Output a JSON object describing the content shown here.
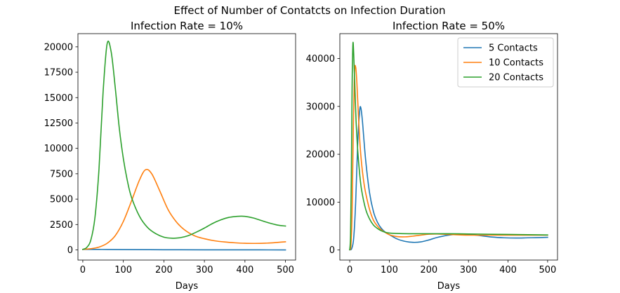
{
  "figure": {
    "suptitle": "Effect of Number of Contatcts on Infection Duration"
  },
  "chart_data": [
    {
      "type": "line",
      "title": "Infection Rate = 10%",
      "xlabel": "Days",
      "ylabel": "",
      "xlim": [
        -12,
        525
      ],
      "ylim": [
        -1000,
        21300
      ],
      "xticks": [
        0,
        100,
        200,
        300,
        400,
        500
      ],
      "xtick_labels": [
        "0",
        "100",
        "200",
        "300",
        "400",
        "500"
      ],
      "yticks": [
        0,
        2500,
        5000,
        7500,
        10000,
        12500,
        15000,
        17500,
        20000
      ],
      "ytick_labels": [
        "0",
        "2500",
        "5000",
        "7500",
        "10000",
        "12500",
        "15000",
        "17500",
        "20000"
      ],
      "legend": null,
      "series": [
        {
          "color": "#1f77b4",
          "x": [
            0,
            20,
            40,
            60,
            100,
            200,
            300,
            400,
            500
          ],
          "y": [
            50,
            50,
            45,
            40,
            30,
            15,
            8,
            4,
            0
          ]
        },
        {
          "color": "#ff7f0e",
          "x": [
            0,
            20,
            40,
            60,
            80,
            100,
            120,
            140,
            155,
            170,
            190,
            210,
            230,
            250,
            275,
            300,
            325,
            350,
            375,
            400,
            425,
            450,
            475,
            500
          ],
          "y": [
            50,
            120,
            280,
            650,
            1400,
            2800,
            4800,
            6900,
            7900,
            7500,
            5800,
            4000,
            2800,
            2000,
            1400,
            1100,
            900,
            780,
            700,
            650,
            640,
            660,
            720,
            800
          ]
        },
        {
          "color": "#2ca02c",
          "x": [
            0,
            10,
            20,
            30,
            40,
            50,
            60,
            70,
            80,
            90,
            100,
            110,
            120,
            140,
            160,
            180,
            200,
            220,
            240,
            260,
            280,
            300,
            320,
            340,
            360,
            380,
            390,
            400,
            420,
            440,
            460,
            480,
            500
          ],
          "y": [
            50,
            250,
            1000,
            3200,
            8000,
            15500,
            20300,
            19500,
            16000,
            12000,
            9000,
            6800,
            5200,
            3300,
            2200,
            1600,
            1250,
            1150,
            1200,
            1400,
            1750,
            2150,
            2600,
            2950,
            3200,
            3300,
            3320,
            3300,
            3150,
            2900,
            2650,
            2450,
            2350
          ]
        }
      ]
    },
    {
      "type": "line",
      "title": "Infection Rate = 50%",
      "xlabel": "Days",
      "ylabel": "",
      "xlim": [
        -25,
        525
      ],
      "ylim": [
        -2100,
        45200
      ],
      "xticks": [
        0,
        100,
        200,
        300,
        400,
        500
      ],
      "xtick_labels": [
        "0",
        "100",
        "200",
        "300",
        "400",
        "500"
      ],
      "yticks": [
        0,
        10000,
        20000,
        30000,
        40000
      ],
      "ytick_labels": [
        "0",
        "10000",
        "20000",
        "30000",
        "40000"
      ],
      "legend": {
        "placement": "top-right"
      },
      "series": [
        {
          "name": "5 Contacts",
          "color": "#1f77b4",
          "x": [
            0,
            5,
            10,
            15,
            20,
            25,
            28,
            32,
            40,
            50,
            60,
            70,
            80,
            90,
            100,
            120,
            140,
            160,
            180,
            200,
            220,
            250,
            280,
            300,
            330,
            360,
            390,
            420,
            450,
            480,
            500
          ],
          "y": [
            50,
            300,
            2500,
            10000,
            22000,
            29000,
            29700,
            27000,
            19000,
            12000,
            8000,
            5800,
            4500,
            3700,
            3200,
            2300,
            1800,
            1600,
            1700,
            2100,
            2600,
            3100,
            3300,
            3250,
            3000,
            2700,
            2550,
            2500,
            2550,
            2600,
            2650
          ]
        },
        {
          "name": "10 Contacts",
          "color": "#ff7f0e",
          "x": [
            0,
            3,
            6,
            9,
            12,
            15,
            18,
            22,
            26,
            30,
            35,
            40,
            50,
            60,
            70,
            80,
            100,
            120,
            140,
            160,
            180,
            200,
            220,
            250,
            280,
            300,
            350,
            400,
            450,
            500
          ],
          "y": [
            50,
            1000,
            8000,
            25000,
            37000,
            38200,
            35000,
            28000,
            22000,
            18000,
            14500,
            12000,
            8500,
            6200,
            5000,
            4200,
            3200,
            2800,
            2750,
            2900,
            3100,
            3300,
            3350,
            3250,
            3150,
            3100,
            3100,
            3100,
            3100,
            3100
          ]
        },
        {
          "name": "20 Contacts",
          "color": "#2ca02c",
          "x": [
            0,
            2,
            4,
            6,
            8,
            10,
            13,
            16,
            20,
            25,
            30,
            40,
            50,
            60,
            70,
            80,
            90,
            100,
            120,
            150,
            200,
            250,
            300,
            350,
            400,
            450,
            500
          ],
          "y": [
            50,
            3000,
            15000,
            34000,
            43000,
            41000,
            34000,
            27000,
            21000,
            16000,
            12500,
            8600,
            6500,
            5200,
            4500,
            4000,
            3700,
            3550,
            3450,
            3400,
            3400,
            3400,
            3350,
            3300,
            3250,
            3200,
            3150
          ]
        }
      ]
    }
  ]
}
